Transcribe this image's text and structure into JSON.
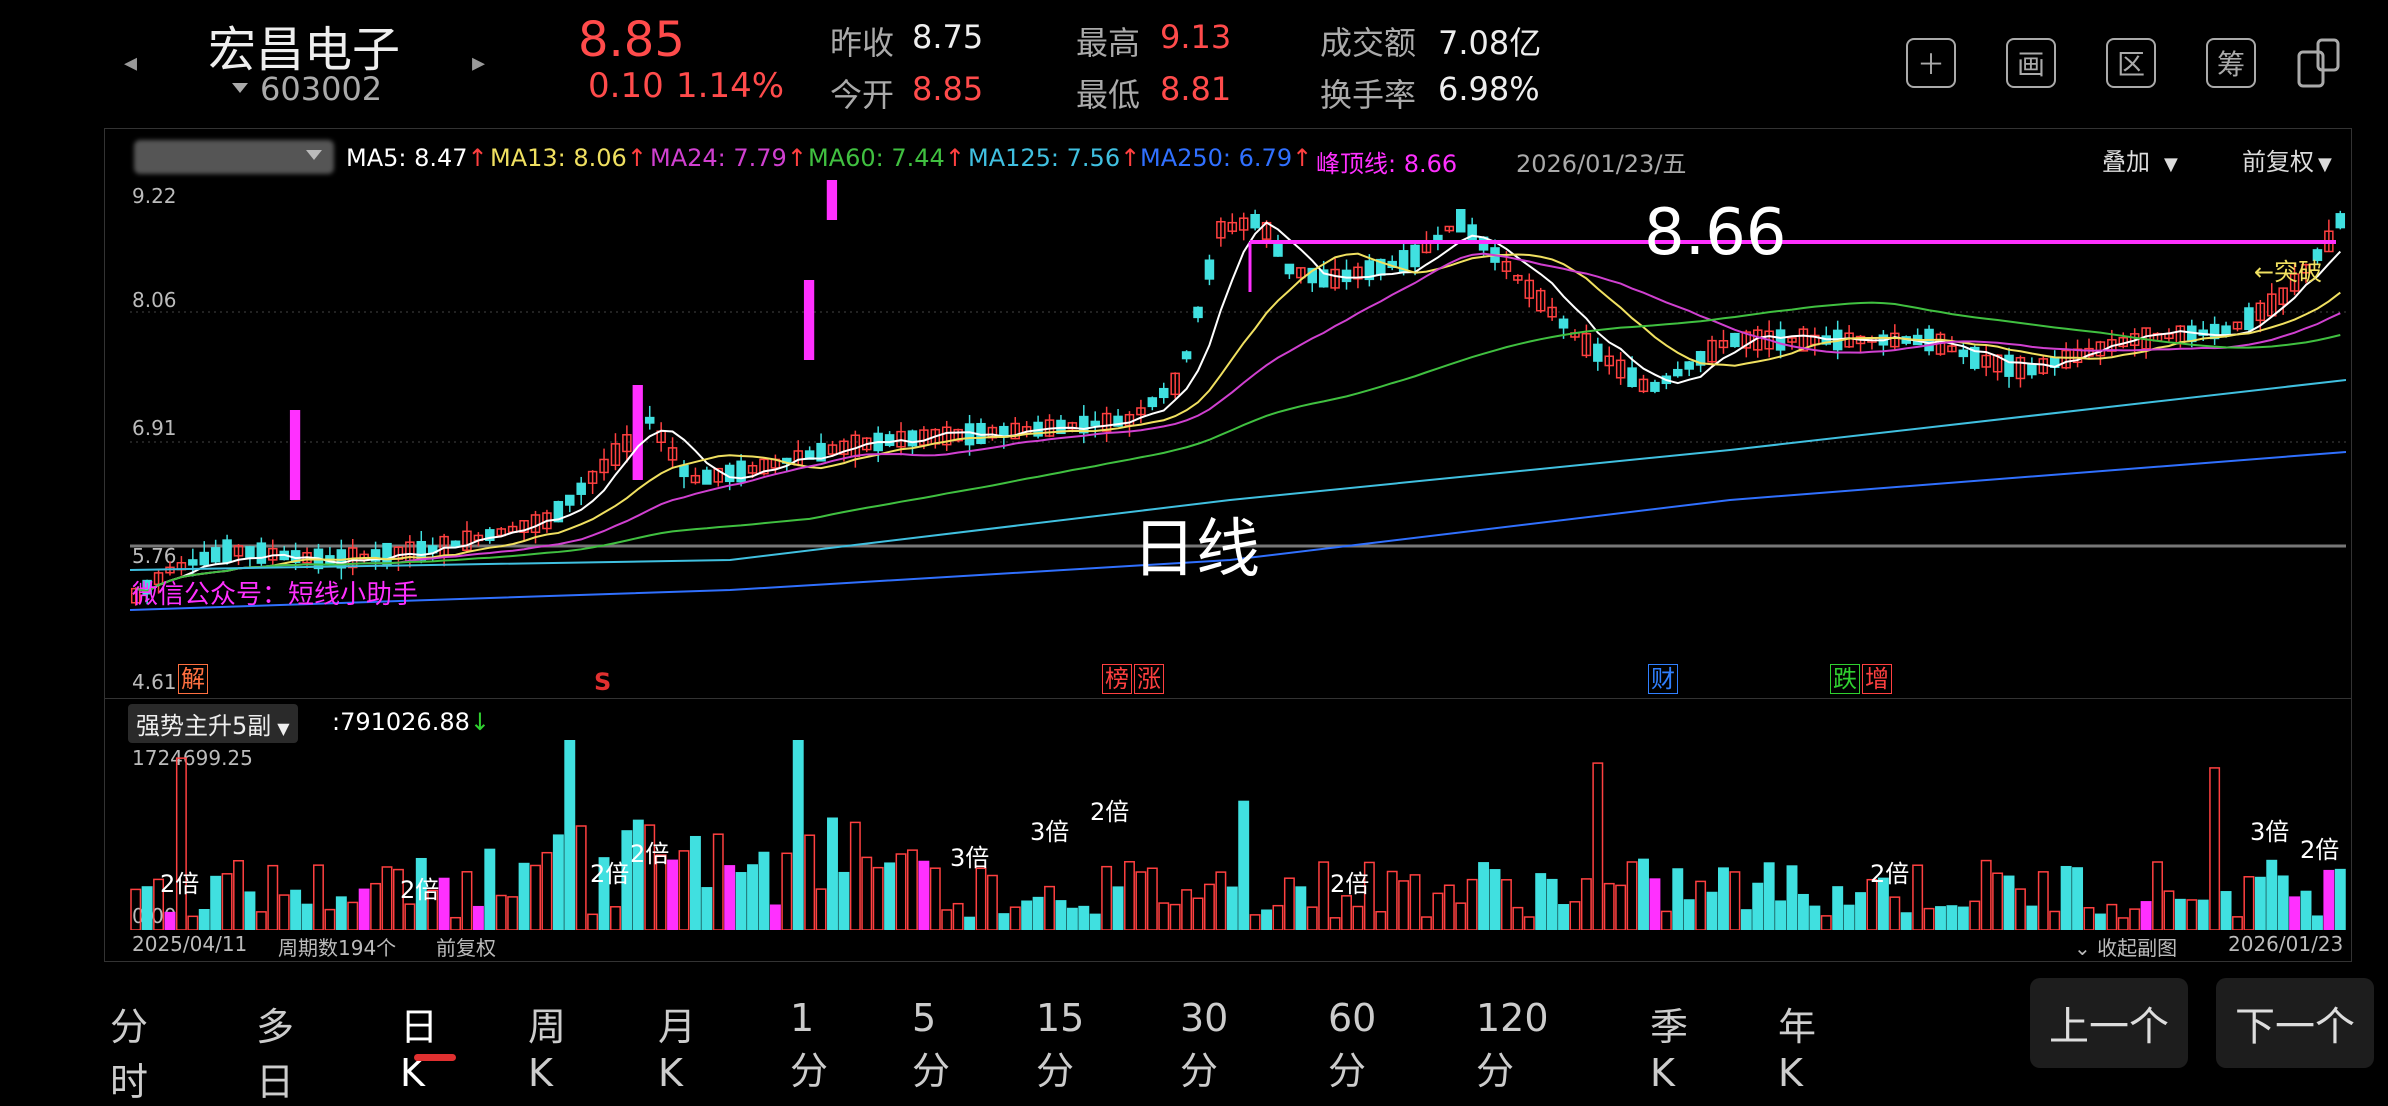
{
  "header": {
    "name": "宏昌电子",
    "code": "603002",
    "price": "8.85",
    "change": "0.10",
    "change_pct": "1.14%",
    "prev_close_label": "昨收",
    "prev_close": "8.75",
    "open_label": "今开",
    "open": "8.85",
    "high_label": "最高",
    "high": "9.13",
    "low_label": "最低",
    "low": "8.81",
    "amount_label": "成交额",
    "amount": "7.08亿",
    "turnover_label": "换手率",
    "turnover": "6.98%"
  },
  "toolbar": {
    "btn2": "画",
    "btn3": "区",
    "btn4": "筹"
  },
  "main_chart": {
    "ma5": "MA5: 8.47",
    "ma13": "MA13: 8.06",
    "ma24": "MA24: 7.79",
    "ma60": "MA60: 7.44",
    "ma125": "MA125: 7.56",
    "ma250": "MA250: 6.79",
    "peak": "峰顶线: 8.66",
    "date": "2026/01/23/五",
    "overlay": "叠加",
    "adjust": "前复权",
    "y_labels": [
      "9.22",
      "8.06",
      "6.91",
      "5.76",
      "4.61"
    ],
    "peak_value": "8.66",
    "breakout": "←突破",
    "watermark": "微信公众号：短线小助手",
    "period_label": "日线",
    "markers": [
      "解",
      "S",
      "榜",
      "涨",
      "财",
      "跌",
      "增"
    ],
    "colors": {
      "ma5": "#ffffff",
      "ma13": "#f0e060",
      "ma24": "#d040d0",
      "ma60": "#40c040",
      "ma125": "#40c0e0",
      "ma250": "#3070ff",
      "peak": "#ff30ff",
      "up": "#ff4040",
      "down": "#40e0e0"
    }
  },
  "sub_chart": {
    "indicator": "强势主升5副",
    "value": ":791026.88",
    "max": "1724699.25",
    "min": "0.00",
    "start_date": "2025/04/11",
    "period_count": "周期数194个",
    "adjust": "前复权",
    "collapse": "收起副图",
    "end_date": "2026/01/23",
    "multiplier_labels": [
      "2倍",
      "2倍",
      "2倍",
      "2倍",
      "3倍",
      "3倍",
      "2倍",
      "2倍",
      "2倍",
      "3倍",
      "2倍"
    ]
  },
  "periods": [
    "分时",
    "多日",
    "日K",
    "周K",
    "月K",
    "1分",
    "5分",
    "15分",
    "30分",
    "60分",
    "120分",
    "季K",
    "年K"
  ],
  "nav": {
    "prev": "上一个",
    "next": "下一个"
  }
}
